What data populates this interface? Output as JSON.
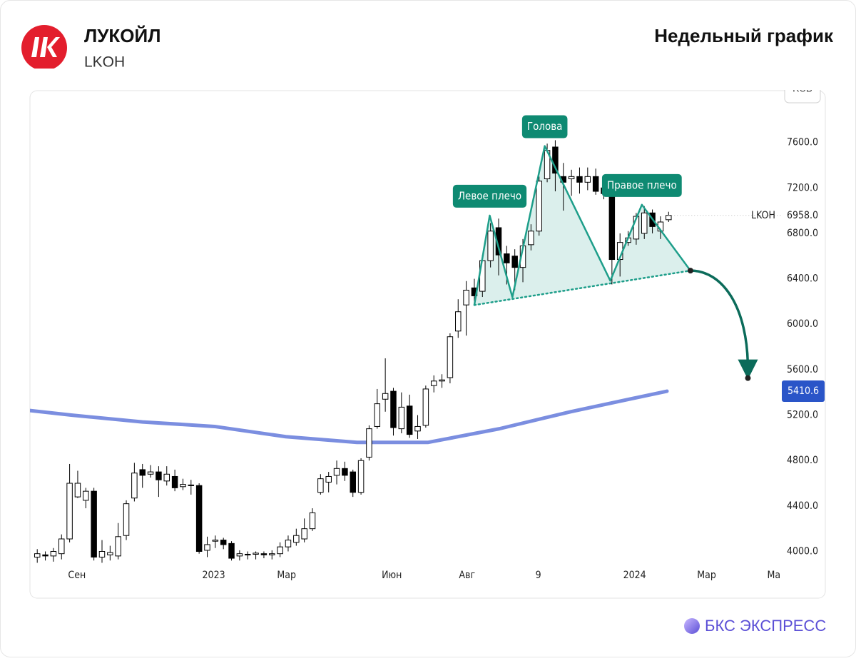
{
  "header": {
    "company": "ЛУКОЙЛ",
    "ticker": "LKOH",
    "period": "Недельный график"
  },
  "footer": {
    "brand": "БКС ЭКСПРЕСС"
  },
  "chart_data": {
    "type": "candlestick",
    "currency": "RUB",
    "up_color": "#ffffff",
    "down_color": "#000000",
    "ylim": [
      3890,
      8050
    ],
    "yticks": [
      {
        "value": 4000,
        "label": "4000.0"
      },
      {
        "value": 4400,
        "label": "4400.0"
      },
      {
        "value": 4800,
        "label": "4800.0"
      },
      {
        "value": 5200,
        "label": "5200.0"
      },
      {
        "value": 5600,
        "label": "5600.0"
      },
      {
        "value": 6000,
        "label": "6000.0"
      },
      {
        "value": 6400,
        "label": "6400.0"
      },
      {
        "value": 6800,
        "label": "6800.0"
      },
      {
        "value": 7200,
        "label": "7200.0"
      },
      {
        "value": 7600,
        "label": "7600.0"
      }
    ],
    "xlim": [
      -0.9,
      91.9
    ],
    "xticks": [
      {
        "value": 4.9,
        "label": "Сен"
      },
      {
        "value": 21.8,
        "label": "2023"
      },
      {
        "value": 30.8,
        "label": "Мар"
      },
      {
        "value": 43.8,
        "label": "Июн"
      },
      {
        "value": 53.1,
        "label": "Авг"
      },
      {
        "value": 61.9,
        "label": "9"
      },
      {
        "value": 73.8,
        "label": "2024"
      },
      {
        "value": 82.7,
        "label": "Мар"
      },
      {
        "value": 91,
        "label": "Ма"
      }
    ],
    "ohlc": [
      [
        3950,
        4020,
        3900,
        3980
      ],
      [
        3970,
        4000,
        3920,
        3960
      ],
      [
        3960,
        4030,
        3910,
        4000
      ],
      [
        3980,
        4150,
        3930,
        4110
      ],
      [
        4110,
        4770,
        4080,
        4600
      ],
      [
        4480,
        4710,
        4470,
        4600
      ],
      [
        4450,
        4560,
        4380,
        4530
      ],
      [
        4530,
        4560,
        3920,
        3950
      ],
      [
        3950,
        4100,
        3900,
        4000
      ],
      [
        3970,
        4050,
        3920,
        3990
      ],
      [
        3960,
        4250,
        3930,
        4130
      ],
      [
        4140,
        4450,
        4100,
        4420
      ],
      [
        4470,
        4780,
        4440,
        4690
      ],
      [
        4720,
        4770,
        4560,
        4670
      ],
      [
        4680,
        4760,
        4650,
        4700
      ],
      [
        4700,
        4750,
        4480,
        4630
      ],
      [
        4620,
        4750,
        4580,
        4680
      ],
      [
        4660,
        4720,
        4530,
        4560
      ],
      [
        4570,
        4640,
        4540,
        4590
      ],
      [
        4580,
        4630,
        4500,
        4585
      ],
      [
        4580,
        4600,
        3980,
        4000
      ],
      [
        4010,
        4130,
        3950,
        4060
      ],
      [
        4090,
        4140,
        4030,
        4100
      ],
      [
        4100,
        4120,
        4020,
        4060
      ],
      [
        4070,
        4090,
        3920,
        3940
      ],
      [
        3960,
        4010,
        3920,
        3980
      ],
      [
        3970,
        4000,
        3930,
        3975
      ],
      [
        3975,
        4000,
        3930,
        3985
      ],
      [
        3980,
        4000,
        3940,
        3970
      ],
      [
        3970,
        4010,
        3930,
        3980
      ],
      [
        3980,
        4080,
        3950,
        4040
      ],
      [
        4040,
        4140,
        4000,
        4100
      ],
      [
        4080,
        4200,
        4050,
        4140
      ],
      [
        4110,
        4290,
        4080,
        4200
      ],
      [
        4200,
        4380,
        4180,
        4340
      ],
      [
        4520,
        4680,
        4500,
        4640
      ],
      [
        4610,
        4700,
        4520,
        4660
      ],
      [
        4670,
        4800,
        4590,
        4730
      ],
      [
        4730,
        4790,
        4620,
        4670
      ],
      [
        4700,
        4720,
        4480,
        4520
      ],
      [
        4520,
        4820,
        4500,
        4800
      ],
      [
        4830,
        5110,
        4800,
        5080
      ],
      [
        5100,
        5430,
        5080,
        5300
      ],
      [
        5340,
        5700,
        5230,
        5390
      ],
      [
        5410,
        5440,
        5020,
        5090
      ],
      [
        5080,
        5400,
        5040,
        5270
      ],
      [
        5280,
        5380,
        5000,
        5030
      ],
      [
        5060,
        5200,
        4990,
        5100
      ],
      [
        5110,
        5460,
        5090,
        5430
      ],
      [
        5460,
        5550,
        5400,
        5500
      ],
      [
        5500,
        5560,
        5440,
        5510
      ],
      [
        5530,
        5920,
        5480,
        5890
      ],
      [
        5940,
        6220,
        5880,
        6110
      ],
      [
        6170,
        6380,
        5900,
        6300
      ],
      [
        6320,
        6400,
        6170,
        6250
      ],
      [
        6290,
        6610,
        6240,
        6560
      ],
      [
        6560,
        6890,
        6500,
        6820
      ],
      [
        6850,
        6930,
        6430,
        6610
      ],
      [
        6620,
        6690,
        6350,
        6540
      ],
      [
        6600,
        6660,
        6300,
        6500
      ],
      [
        6500,
        6750,
        6370,
        6690
      ],
      [
        6700,
        6880,
        6650,
        6820
      ],
      [
        6820,
        7300,
        6780,
        7260
      ],
      [
        7280,
        7590,
        7250,
        7530
      ],
      [
        7560,
        7620,
        7170,
        7330
      ],
      [
        7300,
        7420,
        7000,
        7250
      ],
      [
        7280,
        7360,
        7130,
        7300
      ],
      [
        7300,
        7380,
        7150,
        7250
      ],
      [
        7250,
        7380,
        7180,
        7300
      ],
      [
        7300,
        7370,
        7140,
        7170
      ],
      [
        7200,
        7260,
        7100,
        7150
      ],
      [
        7200,
        7250,
        6350,
        6570
      ],
      [
        6570,
        6800,
        6420,
        6720
      ],
      [
        6720,
        6820,
        6690,
        6760
      ],
      [
        6750,
        6980,
        6700,
        6950
      ],
      [
        6800,
        7040,
        6750,
        6980
      ],
      [
        6980,
        7010,
        6800,
        6860
      ],
      [
        6820,
        6950,
        6750,
        6900
      ],
      [
        6920,
        6990,
        6900,
        6958
      ]
    ],
    "last_price": {
      "name": "LKOH",
      "value": 6958,
      "label": "6958.0"
    },
    "moving_average": {
      "color": "#7b8ee0",
      "x": [
        -0.9,
        4.2,
        13,
        21.9,
        30.7,
        39.5,
        48.3,
        57.1,
        65.9,
        77.8
      ],
      "values": [
        5240,
        5200,
        5140,
        5100,
        5010,
        4960,
        4960,
        5080,
        5230,
        5410.6
      ],
      "last_value": 5410.6
    },
    "pattern": {
      "color": "#1e9e8a",
      "x": [
        54,
        55.9,
        58.7,
        62.7,
        70.8,
        74.7,
        80.7
      ],
      "values": [
        6169,
        6957,
        6238,
        7569,
        6383,
        7052,
        6472
      ]
    },
    "neckline": {
      "x": [
        54,
        80.7
      ],
      "values": [
        6169,
        6472
      ]
    },
    "target": {
      "color": "#0b6b5a",
      "x": [
        80.7,
        87.8
      ],
      "values": [
        6472,
        5526
      ]
    },
    "annotations": [
      "Левое плечо",
      "Голова",
      "Правое плечо"
    ]
  }
}
